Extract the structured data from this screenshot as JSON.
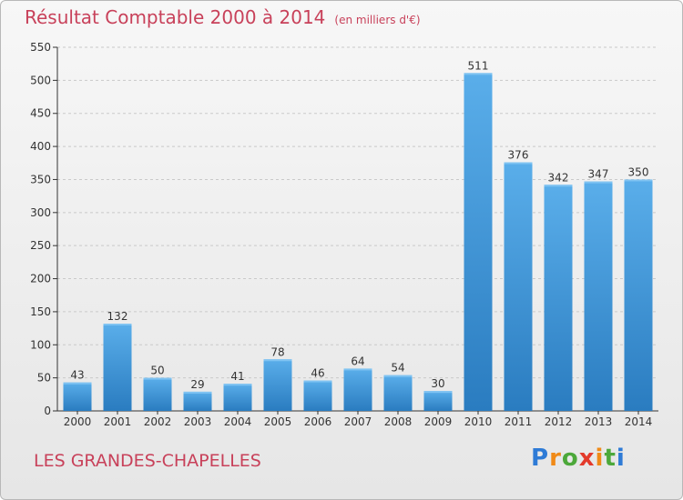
{
  "header": {
    "title": "Résultat Comptable 2000 à 2014",
    "unit": "(en milliers d'€)"
  },
  "footer": {
    "commune": "LES GRANDES-CHAPELLES",
    "brand": "Proxiti"
  },
  "colors": {
    "bar_light": "#5aaeea",
    "bar_dark": "#2a7cc0",
    "title": "#c8415a",
    "axis": "#333333",
    "grid": "#c9c9c9"
  },
  "chart_data": {
    "type": "bar",
    "title": "Résultat Comptable 2000 à 2014",
    "subtitle": "(en milliers d'€)",
    "xlabel": "",
    "ylabel": "",
    "categories": [
      "2000",
      "2001",
      "2002",
      "2003",
      "2004",
      "2005",
      "2006",
      "2007",
      "2008",
      "2009",
      "2010",
      "2011",
      "2012",
      "2013",
      "2014"
    ],
    "values": [
      43,
      132,
      50,
      29,
      41,
      78,
      46,
      64,
      54,
      30,
      511,
      376,
      342,
      347,
      350
    ],
    "ylim": [
      0,
      550
    ],
    "yticks": [
      0,
      50,
      100,
      150,
      200,
      250,
      300,
      350,
      400,
      450,
      500,
      550
    ],
    "grid": true,
    "legend": "none"
  }
}
